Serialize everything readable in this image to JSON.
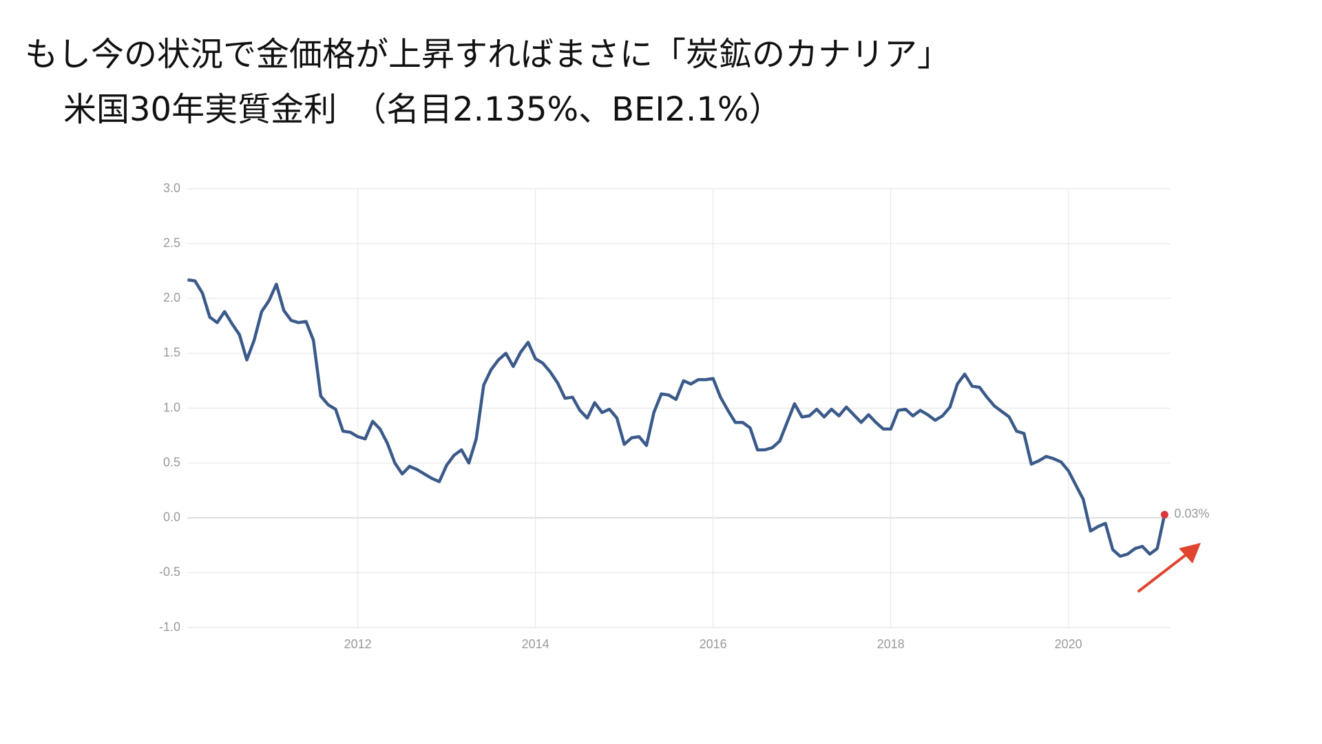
{
  "chart_data": {
    "type": "line",
    "title": "もし今の状況で金価格が上昇すればまさに「炭鉱のカナリア」",
    "subtitle": "米国30年実質金利　（名目2.135%、BEI2.1%）",
    "x": [
      2010.083,
      2010.167,
      2010.25,
      2010.333,
      2010.417,
      2010.5,
      2010.583,
      2010.667,
      2010.75,
      2010.833,
      2010.917,
      2011.0,
      2011.083,
      2011.167,
      2011.25,
      2011.333,
      2011.417,
      2011.5,
      2011.583,
      2011.667,
      2011.75,
      2011.833,
      2011.917,
      2012.0,
      2012.083,
      2012.167,
      2012.25,
      2012.333,
      2012.417,
      2012.5,
      2012.583,
      2012.667,
      2012.75,
      2012.833,
      2012.917,
      2013.0,
      2013.083,
      2013.167,
      2013.25,
      2013.333,
      2013.417,
      2013.5,
      2013.583,
      2013.667,
      2013.75,
      2013.833,
      2013.917,
      2014.0,
      2014.083,
      2014.167,
      2014.25,
      2014.333,
      2014.417,
      2014.5,
      2014.583,
      2014.667,
      2014.75,
      2014.833,
      2014.917,
      2015.0,
      2015.083,
      2015.167,
      2015.25,
      2015.333,
      2015.417,
      2015.5,
      2015.583,
      2015.667,
      2015.75,
      2015.833,
      2015.917,
      2016.0,
      2016.083,
      2016.167,
      2016.25,
      2016.333,
      2016.417,
      2016.5,
      2016.583,
      2016.667,
      2016.75,
      2016.833,
      2016.917,
      2017.0,
      2017.083,
      2017.167,
      2017.25,
      2017.333,
      2017.417,
      2017.5,
      2017.583,
      2017.667,
      2017.75,
      2017.833,
      2017.917,
      2018.0,
      2018.083,
      2018.167,
      2018.25,
      2018.333,
      2018.417,
      2018.5,
      2018.583,
      2018.667,
      2018.75,
      2018.833,
      2018.917,
      2019.0,
      2019.083,
      2019.167,
      2019.25,
      2019.333,
      2019.417,
      2019.5,
      2019.583,
      2019.667,
      2019.75,
      2019.833,
      2019.917,
      2020.0,
      2020.083,
      2020.167,
      2020.25,
      2020.333,
      2020.417,
      2020.5,
      2020.583,
      2020.667,
      2020.75,
      2020.833,
      2020.917,
      2021.0,
      2021.083
    ],
    "series": [
      {
        "color": "#3b5a8a",
        "values": [
          2.17,
          2.16,
          2.05,
          1.83,
          1.78,
          1.88,
          1.77,
          1.67,
          1.44,
          1.62,
          1.88,
          1.98,
          2.13,
          1.89,
          1.8,
          1.78,
          1.79,
          1.62,
          1.11,
          1.03,
          0.99,
          0.79,
          0.78,
          0.74,
          0.72,
          0.88,
          0.81,
          0.68,
          0.5,
          0.4,
          0.47,
          0.44,
          0.4,
          0.36,
          0.33,
          0.48,
          0.57,
          0.62,
          0.5,
          0.72,
          1.21,
          1.35,
          1.44,
          1.5,
          1.38,
          1.51,
          1.6,
          1.45,
          1.41,
          1.33,
          1.23,
          1.09,
          1.1,
          0.98,
          0.91,
          1.05,
          0.96,
          0.99,
          0.91,
          0.67,
          0.73,
          0.74,
          0.66,
          0.96,
          1.13,
          1.12,
          1.08,
          1.25,
          1.22,
          1.26,
          1.26,
          1.27,
          1.1,
          0.98,
          0.87,
          0.87,
          0.82,
          0.62,
          0.62,
          0.64,
          0.7,
          0.87,
          1.04,
          0.92,
          0.93,
          0.99,
          0.92,
          0.99,
          0.93,
          1.01,
          0.94,
          0.87,
          0.94,
          0.87,
          0.81,
          0.81,
          0.98,
          0.99,
          0.93,
          0.98,
          0.94,
          0.89,
          0.93,
          1.01,
          1.22,
          1.31,
          1.2,
          1.19,
          1.1,
          1.02,
          0.97,
          0.92,
          0.79,
          0.77,
          0.49,
          0.52,
          0.56,
          0.54,
          0.51,
          0.43,
          0.3,
          0.17,
          -0.12,
          -0.08,
          -0.05,
          -0.29,
          -0.35,
          -0.33,
          -0.28,
          -0.26,
          -0.33,
          -0.28,
          0.03
        ],
        "value_labels": [
          null,
          null,
          null,
          null,
          null,
          null,
          null,
          null,
          null,
          null,
          null,
          null,
          null,
          null,
          null,
          null,
          null,
          null,
          null,
          null,
          null,
          null,
          null,
          null,
          null,
          null,
          null,
          null,
          null,
          null,
          null,
          null,
          null,
          null,
          null,
          null,
          null,
          null,
          null,
          null,
          null,
          null,
          null,
          null,
          null,
          null,
          null,
          null,
          null,
          null,
          null,
          null,
          null,
          null,
          null,
          null,
          null,
          null,
          null,
          null,
          null,
          null,
          null,
          null,
          null,
          null,
          null,
          null,
          null,
          null,
          null,
          null,
          null,
          null,
          null,
          null,
          null,
          null,
          null,
          null,
          null,
          null,
          null,
          null,
          null,
          null,
          null,
          null,
          null,
          null,
          null,
          null,
          null,
          null,
          null,
          null,
          null,
          null,
          null,
          null,
          null,
          null,
          null,
          null,
          null,
          null,
          null,
          null,
          null,
          null,
          null,
          null,
          null,
          null,
          null,
          null,
          null,
          null,
          null,
          null,
          null,
          null,
          null,
          null,
          null,
          null,
          null,
          null,
          null,
          null,
          null,
          null,
          "0.03%"
        ],
        "marker_color": "#d9363e"
      }
    ],
    "xlim": [
      2010.08,
      2021.15
    ],
    "xticks": [
      2012,
      2014,
      2016,
      2018,
      2020
    ],
    "ylim": [
      -1,
      3
    ],
    "yticks": [
      {
        "value": -1,
        "label": "-1.0"
      },
      {
        "value": -0.5,
        "label": "-0.5"
      },
      {
        "value": 0,
        "label": "0.0"
      },
      {
        "value": 0.5,
        "label": "0.5"
      },
      {
        "value": 1,
        "label": "1.0"
      },
      {
        "value": 1.5,
        "label": "1.5"
      },
      {
        "value": 2,
        "label": "2.0"
      },
      {
        "value": 2.5,
        "label": "2.5"
      },
      {
        "value": 3,
        "label": "3.0"
      }
    ],
    "grid": true
  }
}
